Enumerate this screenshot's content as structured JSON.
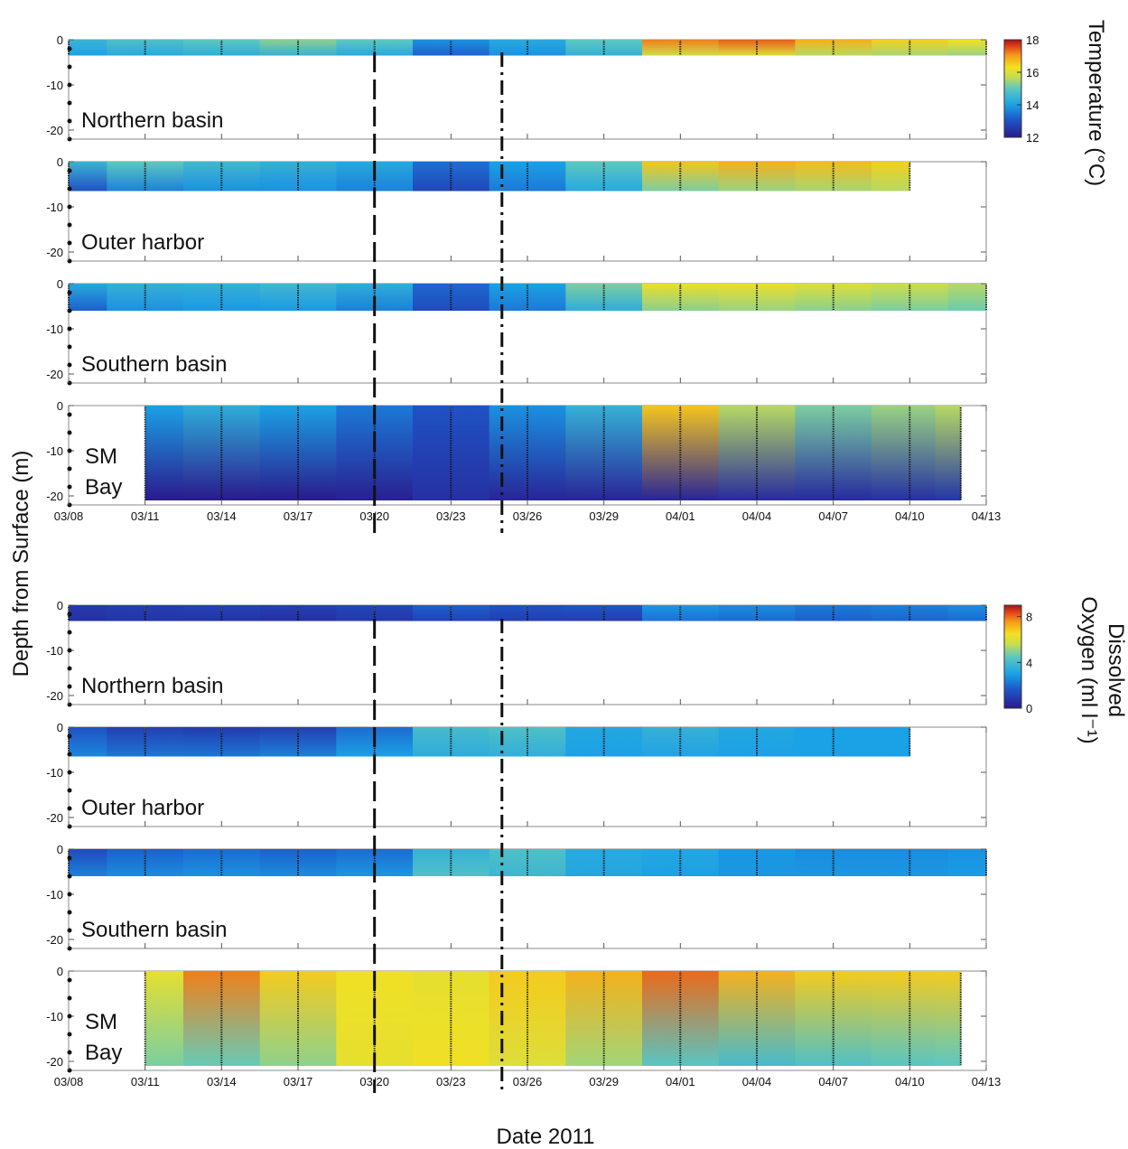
{
  "chart_data": {
    "type": "heatmap",
    "xlabel": "Date 2011",
    "ylabel": "Depth from Surface (m)",
    "x_ticks": [
      "03/08",
      "03/11",
      "03/14",
      "03/17",
      "03/20",
      "03/23",
      "03/26",
      "03/29",
      "04/01",
      "04/04",
      "04/07",
      "04/10",
      "04/13"
    ],
    "xlim": [
      "03/08",
      "04/13"
    ],
    "y_ticks": [
      "0",
      "-10",
      "-20"
    ],
    "ylim": [
      -22,
      0
    ],
    "event_lines": [
      {
        "date": "03/20",
        "style": "dashed"
      },
      {
        "date": "03/25",
        "style": "dash-dot"
      }
    ],
    "groups": [
      {
        "variable": "temperature",
        "colorbar_title": [
          "Temperature (°C)"
        ],
        "colorbar_ticks": [
          "18",
          "16",
          "14",
          "12"
        ],
        "colorbar_range": [
          12,
          18
        ],
        "panels": [
          {
            "label": [
              "Northern basin"
            ],
            "max_depth": 3.5,
            "profiles": [
              {
                "date": "03/08",
                "surface": 14.5,
                "bottom": 14.0
              },
              {
                "date": "03/11",
                "surface": 14.8,
                "bottom": 14.2
              },
              {
                "date": "03/14",
                "surface": 15.0,
                "bottom": 14.3
              },
              {
                "date": "03/17",
                "surface": 15.3,
                "bottom": 14.4
              },
              {
                "date": "03/20",
                "surface": 15.0,
                "bottom": 14.2
              },
              {
                "date": "03/23",
                "surface": 13.8,
                "bottom": 13.2
              },
              {
                "date": "03/26",
                "surface": 14.2,
                "bottom": 13.8
              },
              {
                "date": "03/29",
                "surface": 15.0,
                "bottom": 14.4
              },
              {
                "date": "04/01",
                "surface": 17.2,
                "bottom": 15.8
              },
              {
                "date": "04/04",
                "surface": 17.4,
                "bottom": 16.0
              },
              {
                "date": "04/07",
                "surface": 16.8,
                "bottom": 15.6
              },
              {
                "date": "04/10",
                "surface": 16.5,
                "bottom": 15.5
              },
              {
                "date": "04/13",
                "surface": 16.3,
                "bottom": 15.4
              }
            ]
          },
          {
            "label": [
              "Outer harbor"
            ],
            "max_depth": 6.5,
            "profiles": [
              {
                "date": "03/08",
                "surface": 14.5,
                "bottom": 13.0
              },
              {
                "date": "03/11",
                "surface": 15.0,
                "bottom": 13.6
              },
              {
                "date": "03/14",
                "surface": 14.6,
                "bottom": 13.8
              },
              {
                "date": "03/17",
                "surface": 14.4,
                "bottom": 13.8
              },
              {
                "date": "03/20",
                "surface": 14.2,
                "bottom": 13.6
              },
              {
                "date": "03/23",
                "surface": 13.4,
                "bottom": 12.8
              },
              {
                "date": "03/26",
                "surface": 14.0,
                "bottom": 13.5
              },
              {
                "date": "03/29",
                "surface": 15.0,
                "bottom": 14.2
              },
              {
                "date": "04/01",
                "surface": 16.6,
                "bottom": 15.2
              },
              {
                "date": "04/04",
                "surface": 16.8,
                "bottom": 15.4
              },
              {
                "date": "04/07",
                "surface": 16.7,
                "bottom": 15.5
              },
              {
                "date": "04/10",
                "surface": 16.5,
                "bottom": 15.6
              }
            ]
          },
          {
            "label": [
              "Southern basin"
            ],
            "max_depth": 6.0,
            "profiles": [
              {
                "date": "03/08",
                "surface": 14.2,
                "bottom": 13.2
              },
              {
                "date": "03/11",
                "surface": 14.4,
                "bottom": 13.8
              },
              {
                "date": "03/14",
                "surface": 14.4,
                "bottom": 13.9
              },
              {
                "date": "03/17",
                "surface": 14.6,
                "bottom": 13.9
              },
              {
                "date": "03/20",
                "surface": 14.3,
                "bottom": 13.6
              },
              {
                "date": "03/23",
                "surface": 13.3,
                "bottom": 12.9
              },
              {
                "date": "03/26",
                "surface": 14.0,
                "bottom": 13.5
              },
              {
                "date": "03/29",
                "surface": 15.2,
                "bottom": 14.3
              },
              {
                "date": "04/01",
                "surface": 16.2,
                "bottom": 15.3
              },
              {
                "date": "04/04",
                "surface": 16.2,
                "bottom": 15.4
              },
              {
                "date": "04/07",
                "surface": 16.0,
                "bottom": 15.3
              },
              {
                "date": "04/10",
                "surface": 15.8,
                "bottom": 15.2
              },
              {
                "date": "04/13",
                "surface": 15.6,
                "bottom": 15.1
              }
            ]
          },
          {
            "label": [
              "SM",
              "Bay"
            ],
            "max_depth": 21.0,
            "start": "03/11",
            "profiles": [
              {
                "date": "03/11",
                "surface": 14.0,
                "bottom": 12.0
              },
              {
                "date": "03/14",
                "surface": 14.3,
                "bottom": 12.0
              },
              {
                "date": "03/17",
                "surface": 14.0,
                "bottom": 12.0
              },
              {
                "date": "03/20",
                "surface": 13.5,
                "bottom": 12.1
              },
              {
                "date": "03/23",
                "surface": 13.0,
                "bottom": 12.4
              },
              {
                "date": "03/26",
                "surface": 13.8,
                "bottom": 12.2
              },
              {
                "date": "03/29",
                "surface": 14.4,
                "bottom": 12.2
              },
              {
                "date": "04/01",
                "surface": 16.6,
                "bottom": 12.2
              },
              {
                "date": "04/04",
                "surface": 15.6,
                "bottom": 12.3
              },
              {
                "date": "04/07",
                "surface": 15.2,
                "bottom": 12.3
              },
              {
                "date": "04/10",
                "surface": 15.4,
                "bottom": 12.4
              },
              {
                "date": "04/12",
                "surface": 15.6,
                "bottom": 12.5
              }
            ]
          }
        ]
      },
      {
        "variable": "dissolved_oxygen",
        "colorbar_title": [
          "Dissolved",
          "Oxygen (ml l⁻¹)"
        ],
        "colorbar_ticks": [
          "8",
          "4",
          "0"
        ],
        "colorbar_range": [
          0,
          9
        ],
        "panels": [
          {
            "label": [
              "Northern basin"
            ],
            "max_depth": 3.5,
            "profiles": [
              {
                "date": "03/08",
                "surface": 0.9,
                "bottom": 0.6
              },
              {
                "date": "03/11",
                "surface": 1.0,
                "bottom": 0.7
              },
              {
                "date": "03/14",
                "surface": 1.1,
                "bottom": 0.7
              },
              {
                "date": "03/17",
                "surface": 1.0,
                "bottom": 0.6
              },
              {
                "date": "03/20",
                "surface": 1.2,
                "bottom": 0.8
              },
              {
                "date": "03/23",
                "surface": 1.8,
                "bottom": 1.1
              },
              {
                "date": "03/26",
                "surface": 1.5,
                "bottom": 1.0
              },
              {
                "date": "03/29",
                "surface": 1.6,
                "bottom": 1.0
              },
              {
                "date": "04/01",
                "surface": 2.8,
                "bottom": 2.1
              },
              {
                "date": "04/04",
                "surface": 2.6,
                "bottom": 2.0
              },
              {
                "date": "04/07",
                "surface": 2.3,
                "bottom": 1.8
              },
              {
                "date": "04/10",
                "surface": 2.4,
                "bottom": 1.9
              },
              {
                "date": "04/13",
                "surface": 2.6,
                "bottom": 2.0
              }
            ]
          },
          {
            "label": [
              "Outer harbor"
            ],
            "max_depth": 6.5,
            "profiles": [
              {
                "date": "03/08",
                "surface": 1.5,
                "bottom": 2.5
              },
              {
                "date": "03/11",
                "surface": 1.0,
                "bottom": 2.2
              },
              {
                "date": "03/14",
                "surface": 0.9,
                "bottom": 2.2
              },
              {
                "date": "03/17",
                "surface": 1.0,
                "bottom": 2.4
              },
              {
                "date": "03/20",
                "surface": 2.0,
                "bottom": 3.0
              },
              {
                "date": "03/23",
                "surface": 4.0,
                "bottom": 3.4
              },
              {
                "date": "03/26",
                "surface": 4.2,
                "bottom": 3.5
              },
              {
                "date": "03/29",
                "surface": 3.2,
                "bottom": 3.0
              },
              {
                "date": "04/01",
                "surface": 3.6,
                "bottom": 3.1
              },
              {
                "date": "04/04",
                "surface": 3.2,
                "bottom": 3.0
              },
              {
                "date": "04/07",
                "surface": 3.0,
                "bottom": 3.0
              },
              {
                "date": "04/10",
                "surface": 3.0,
                "bottom": 3.0
              }
            ]
          },
          {
            "label": [
              "Southern basin"
            ],
            "max_depth": 6.0,
            "profiles": [
              {
                "date": "03/08",
                "surface": 1.3,
                "bottom": 2.4
              },
              {
                "date": "03/11",
                "surface": 1.8,
                "bottom": 2.6
              },
              {
                "date": "03/14",
                "surface": 2.0,
                "bottom": 2.7
              },
              {
                "date": "03/17",
                "surface": 1.8,
                "bottom": 2.6
              },
              {
                "date": "03/20",
                "surface": 2.0,
                "bottom": 2.8
              },
              {
                "date": "03/23",
                "surface": 3.6,
                "bottom": 4.2
              },
              {
                "date": "03/26",
                "surface": 4.2,
                "bottom": 3.8
              },
              {
                "date": "03/29",
                "surface": 3.3,
                "bottom": 3.2
              },
              {
                "date": "04/01",
                "surface": 3.2,
                "bottom": 3.0
              },
              {
                "date": "04/04",
                "surface": 2.8,
                "bottom": 2.8
              },
              {
                "date": "04/07",
                "surface": 2.6,
                "bottom": 2.8
              },
              {
                "date": "04/10",
                "surface": 2.6,
                "bottom": 2.8
              },
              {
                "date": "04/13",
                "surface": 2.7,
                "bottom": 2.9
              }
            ]
          },
          {
            "label": [
              "SM",
              "Bay"
            ],
            "max_depth": 21.0,
            "start": "03/11",
            "profiles": [
              {
                "date": "03/11",
                "surface": 6.2,
                "bottom": 4.8
              },
              {
                "date": "03/14",
                "surface": 7.8,
                "bottom": 4.6
              },
              {
                "date": "03/17",
                "surface": 6.8,
                "bottom": 5.0
              },
              {
                "date": "03/20",
                "surface": 6.4,
                "bottom": 6.2
              },
              {
                "date": "03/23",
                "surface": 6.2,
                "bottom": 6.4
              },
              {
                "date": "03/26",
                "surface": 6.8,
                "bottom": 6.0
              },
              {
                "date": "03/29",
                "surface": 7.2,
                "bottom": 5.2
              },
              {
                "date": "04/01",
                "surface": 8.0,
                "bottom": 4.4
              },
              {
                "date": "04/04",
                "surface": 7.2,
                "bottom": 4.0
              },
              {
                "date": "04/07",
                "surface": 6.8,
                "bottom": 4.2
              },
              {
                "date": "04/10",
                "surface": 6.8,
                "bottom": 4.4
              },
              {
                "date": "04/12",
                "surface": 6.8,
                "bottom": 4.5
              }
            ]
          }
        ]
      }
    ]
  }
}
